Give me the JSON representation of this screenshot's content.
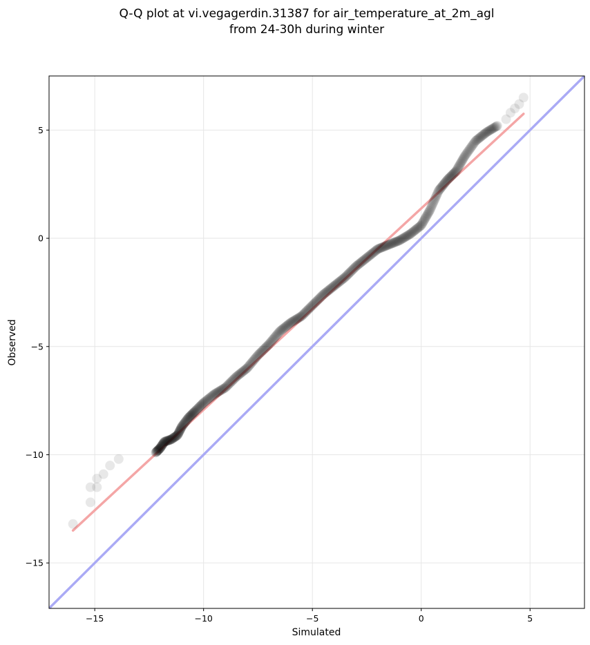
{
  "chart_data": {
    "type": "scatter",
    "title_line1": "Q-Q plot at vi.vegagerdin.31387 for air_temperature_at_2m_agl",
    "title_line2": "from 24-30h during winter",
    "xlabel": "Simulated",
    "ylabel": "Observed",
    "xlim": [
      -17.1,
      7.5
    ],
    "ylim": [
      -17.1,
      7.5
    ],
    "xticks": [
      -15,
      -10,
      -5,
      0,
      5
    ],
    "yticks": [
      -15,
      -10,
      -5,
      0,
      5
    ],
    "xtick_labels": [
      "−15",
      "−10",
      "−5",
      "0",
      "5"
    ],
    "ytick_labels": [
      "−15",
      "−10",
      "−5",
      "0",
      "5"
    ],
    "grid": true,
    "colors": {
      "points": "#000000",
      "fit_line": "#f4a6a6",
      "identity_line": "#aaaaf5"
    },
    "series": [
      {
        "type": "scatter",
        "points": [
          [
            -16.0,
            -13.2
          ],
          [
            -15.2,
            -12.2
          ],
          [
            -15.2,
            -11.5
          ],
          [
            -14.9,
            -11.5
          ],
          [
            -14.9,
            -11.1
          ],
          [
            -14.6,
            -10.9
          ],
          [
            -14.3,
            -10.5
          ],
          [
            -13.9,
            -10.2
          ],
          [
            -12.2,
            -9.9
          ],
          [
            -12.0,
            -9.7
          ],
          [
            -11.8,
            -9.4
          ],
          [
            -11.5,
            -9.3
          ],
          [
            -11.2,
            -9.1
          ],
          [
            -11.0,
            -8.7
          ],
          [
            -10.7,
            -8.3
          ],
          [
            -10.4,
            -8.0
          ],
          [
            -10.0,
            -7.6
          ],
          [
            -9.5,
            -7.2
          ],
          [
            -9.0,
            -6.9
          ],
          [
            -8.5,
            -6.4
          ],
          [
            -8.0,
            -6.0
          ],
          [
            -7.5,
            -5.4
          ],
          [
            -7.0,
            -4.9
          ],
          [
            -6.5,
            -4.3
          ],
          [
            -6.0,
            -3.9
          ],
          [
            -5.5,
            -3.6
          ],
          [
            -5.0,
            -3.1
          ],
          [
            -4.5,
            -2.6
          ],
          [
            -4.0,
            -2.2
          ],
          [
            -3.5,
            -1.8
          ],
          [
            -3.0,
            -1.3
          ],
          [
            -2.5,
            -0.9
          ],
          [
            -2.0,
            -0.5
          ],
          [
            -1.5,
            -0.3
          ],
          [
            -1.0,
            -0.1
          ],
          [
            -0.5,
            0.2
          ],
          [
            0.0,
            0.6
          ],
          [
            0.4,
            1.3
          ],
          [
            0.8,
            2.2
          ],
          [
            1.2,
            2.7
          ],
          [
            1.6,
            3.1
          ],
          [
            2.0,
            3.8
          ],
          [
            2.5,
            4.5
          ],
          [
            3.0,
            4.9
          ],
          [
            3.5,
            5.2
          ],
          [
            3.9,
            5.5
          ],
          [
            4.1,
            5.8
          ],
          [
            4.3,
            6.0
          ],
          [
            4.5,
            6.2
          ],
          [
            4.7,
            6.5
          ]
        ]
      },
      {
        "type": "line",
        "role": "fit",
        "points": [
          [
            -16.0,
            -13.5
          ],
          [
            4.7,
            5.75
          ]
        ]
      },
      {
        "type": "line",
        "role": "identity",
        "points": [
          [
            -17.1,
            -17.1
          ],
          [
            7.5,
            7.5
          ]
        ]
      }
    ]
  }
}
